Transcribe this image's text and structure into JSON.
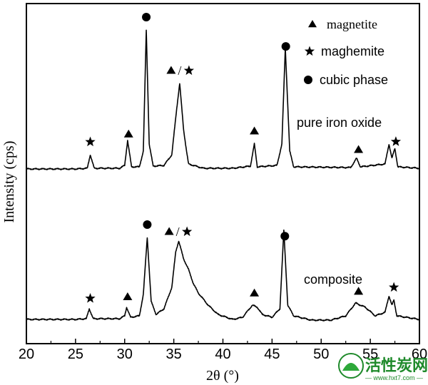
{
  "chart_data": {
    "type": "line",
    "xlabel": "2θ (°)",
    "ylabel": "Intensity (cps)",
    "xlim": [
      20,
      60
    ],
    "xticks": [
      20,
      25,
      30,
      35,
      40,
      45,
      50,
      55,
      60
    ],
    "grid": false,
    "legend": {
      "placement": "top-right",
      "entries": [
        {
          "symbol": "triangle",
          "label": "magnetite"
        },
        {
          "symbol": "star",
          "label": "maghemite"
        },
        {
          "symbol": "circle",
          "label": "cubic phase"
        }
      ]
    },
    "series": [
      {
        "name": "pure iron oxide",
        "points": [
          [
            20,
            5
          ],
          [
            25,
            5
          ],
          [
            26.2,
            6
          ],
          [
            26.5,
            25
          ],
          [
            26.9,
            6
          ],
          [
            29.5,
            6
          ],
          [
            30.0,
            10
          ],
          [
            30.3,
            45
          ],
          [
            30.7,
            8
          ],
          [
            31.5,
            8
          ],
          [
            31.9,
            30
          ],
          [
            32.2,
            200
          ],
          [
            32.5,
            40
          ],
          [
            32.9,
            9
          ],
          [
            34.0,
            10
          ],
          [
            34.8,
            25
          ],
          [
            35.3,
            90
          ],
          [
            35.6,
            125
          ],
          [
            36.0,
            60
          ],
          [
            36.3,
            30
          ],
          [
            36.5,
            12
          ],
          [
            38,
            6
          ],
          [
            41,
            6
          ],
          [
            42.8,
            9
          ],
          [
            43.2,
            40
          ],
          [
            43.5,
            8
          ],
          [
            45.5,
            10
          ],
          [
            46.0,
            40
          ],
          [
            46.35,
            175
          ],
          [
            46.8,
            30
          ],
          [
            47.2,
            8
          ],
          [
            53,
            7
          ],
          [
            53.6,
            20
          ],
          [
            54.0,
            8
          ],
          [
            56.5,
            12
          ],
          [
            56.9,
            40
          ],
          [
            57.2,
            20
          ],
          [
            57.5,
            34
          ],
          [
            57.8,
            8
          ],
          [
            60,
            6
          ]
        ],
        "peaks": [
          {
            "x": 26.5,
            "marker": "star"
          },
          {
            "x": 30.4,
            "marker": "triangle"
          },
          {
            "x": 32.2,
            "marker": "circle"
          },
          {
            "x": 35.6,
            "marker": "triangle/star"
          },
          {
            "x": 43.2,
            "marker": "triangle"
          },
          {
            "x": 46.4,
            "marker": "circle"
          },
          {
            "x": 53.8,
            "marker": "triangle"
          },
          {
            "x": 57.6,
            "marker": "star"
          }
        ]
      },
      {
        "name": "composite",
        "points": [
          [
            20,
            5
          ],
          [
            25,
            5
          ],
          [
            26.1,
            6
          ],
          [
            26.4,
            20
          ],
          [
            26.8,
            6
          ],
          [
            29.5,
            6
          ],
          [
            30.0,
            10
          ],
          [
            30.2,
            22
          ],
          [
            30.6,
            8
          ],
          [
            31.5,
            10
          ],
          [
            31.9,
            40
          ],
          [
            32.3,
            120
          ],
          [
            32.7,
            30
          ],
          [
            33.2,
            12
          ],
          [
            34.0,
            20
          ],
          [
            34.8,
            50
          ],
          [
            35.2,
            100
          ],
          [
            35.5,
            115
          ],
          [
            36.0,
            90
          ],
          [
            36.5,
            75
          ],
          [
            37.0,
            55
          ],
          [
            37.5,
            42
          ],
          [
            38.5,
            25
          ],
          [
            39.5,
            12
          ],
          [
            41,
            5
          ],
          [
            42.0,
            8
          ],
          [
            43.0,
            25
          ],
          [
            43.5,
            22
          ],
          [
            44.0,
            12
          ],
          [
            45.0,
            8
          ],
          [
            45.8,
            20
          ],
          [
            46.2,
            130
          ],
          [
            46.6,
            25
          ],
          [
            47.2,
            10
          ],
          [
            49,
            4
          ],
          [
            51,
            4
          ],
          [
            52.5,
            10
          ],
          [
            53.5,
            28
          ],
          [
            54.5,
            22
          ],
          [
            55.5,
            10
          ],
          [
            56.5,
            15
          ],
          [
            56.9,
            38
          ],
          [
            57.2,
            25
          ],
          [
            57.4,
            32
          ],
          [
            57.7,
            10
          ],
          [
            60,
            5
          ]
        ],
        "peaks": [
          {
            "x": 26.5,
            "marker": "star"
          },
          {
            "x": 30.3,
            "marker": "triangle"
          },
          {
            "x": 32.3,
            "marker": "circle"
          },
          {
            "x": 35.4,
            "marker": "triangle/star"
          },
          {
            "x": 43.2,
            "marker": "triangle"
          },
          {
            "x": 46.3,
            "marker": "circle"
          },
          {
            "x": 53.8,
            "marker": "triangle"
          },
          {
            "x": 57.4,
            "marker": "star"
          }
        ]
      }
    ]
  },
  "watermark": {
    "text": "活性炭网",
    "url": "— www.hxt7.com —"
  }
}
